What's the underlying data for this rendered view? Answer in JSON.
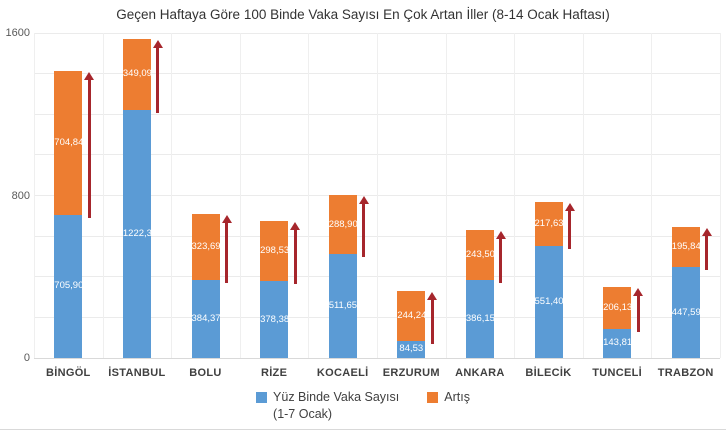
{
  "title": "Geçen Haftaya Göre 100 Binde Vaka Sayısı En Çok Artan İller (8-14 Ocak Haftası)",
  "colors": {
    "series_blue": "#5B9BD5",
    "series_orange": "#ED7D31",
    "arrow_red": "#A6262C",
    "grid": "#EBEBEB",
    "axis_text": "#595959",
    "category_text": "#404040",
    "value_text": "#FFFFFF"
  },
  "chart_data": {
    "type": "bar",
    "stacked": true,
    "title": "Geçen Haftaya Göre 100 Binde Vaka Sayısı En Çok Artan İller (8-14 Ocak Haftası)",
    "categories": [
      "BİNGÖL",
      "İSTANBUL",
      "BOLU",
      "RİZE",
      "KOCAELİ",
      "ERZURUM",
      "ANKARA",
      "BİLECİK",
      "TUNCELİ",
      "TRABZON"
    ],
    "series": [
      {
        "name": "Yüz Binde Vaka Sayısı (1-7 Ocak)",
        "color": "#5B9BD5",
        "values": [
          705.9,
          1222.37,
          384.37,
          378.38,
          511.65,
          84.53,
          386.15,
          551.4,
          143.81,
          447.59
        ],
        "labels": [
          "705,90",
          "1222,37",
          "384,37",
          "378,38",
          "511,65",
          "84,53",
          "386,15",
          "551,40",
          "143,81",
          "447,59"
        ]
      },
      {
        "name": "Artış",
        "color": "#ED7D31",
        "values": [
          704.84,
          349.09,
          323.69,
          298.53,
          288.9,
          244.24,
          243.5,
          217.63,
          206.13,
          195.84
        ],
        "labels": [
          "704,84",
          "349,09",
          "323,69",
          "298,53",
          "288,90",
          "244,24",
          "243,50",
          "217,63",
          "206,13",
          "195,84"
        ]
      }
    ],
    "ylim": [
      0,
      1600
    ],
    "yticks": [
      0,
      800,
      1600
    ],
    "ytick_labels": [
      "0",
      "800",
      "1600"
    ],
    "grid_step": 200,
    "grid": true,
    "legend_position": "bottom",
    "legend": [
      {
        "label": "Yüz Binde Vaka Sayısı",
        "label_line2": "(1-7 Ocak)",
        "color": "#5B9BD5"
      },
      {
        "label": "Artış",
        "label_line2": "",
        "color": "#ED7D31"
      }
    ],
    "annotations": "dark-red upward arrow beside each bar spanning the Artış (increase) segment"
  }
}
